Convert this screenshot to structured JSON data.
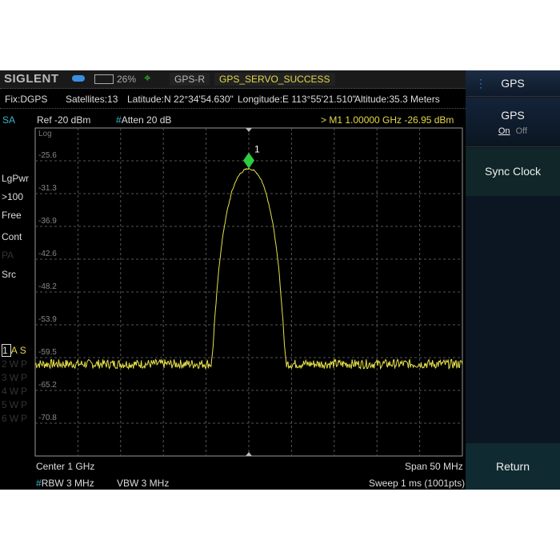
{
  "header": {
    "brand": "SIGLENT",
    "battery": "26%",
    "gps_mode": "GPS-R",
    "gps_status": "GPS_SERVO_SUCCESS"
  },
  "gps_info": {
    "fix": "Fix:DGPS",
    "satellites": "Satellites:13",
    "latitude": "Latitude:N 22°34'54.630\"",
    "longitude": "Longitude:E 113°55'21.510\"",
    "altitude": "Altitude:35.3 Meters"
  },
  "status": {
    "mode": "SA",
    "ref": "Ref  -20 dBm",
    "atten_mark": "#",
    "atten": "Atten  20 dB",
    "marker": ">  M1   1.00000 GHz   -26.95 dBm"
  },
  "left_panel": {
    "items": [
      "LgPwr",
      ">100",
      "Free",
      "Cont",
      "PA",
      "Src"
    ],
    "traces": [
      [
        "1",
        "A",
        "S"
      ],
      [
        "2",
        "W",
        "P"
      ],
      [
        "3",
        "W",
        "P"
      ],
      [
        "4",
        "W",
        "P"
      ],
      [
        "5",
        "W",
        "P"
      ],
      [
        "6",
        "W",
        "P"
      ]
    ]
  },
  "bottom": {
    "center": "Center  1 GHz",
    "span": "Span  50 MHz",
    "rbw_mark": "#",
    "rbw": "RBW  3 MHz",
    "vbw": "VBW  3 MHz",
    "sweep": "Sweep  1 ms (1001pts)"
  },
  "menu": {
    "title": "GPS",
    "gps_label": "GPS",
    "on": "On",
    "off": "Off",
    "sync": "Sync Clock",
    "ret": "Return"
  },
  "chart_data": {
    "type": "line",
    "scale": "Log",
    "y_ticks": [
      "-25.6",
      "-31.3",
      "-36.9",
      "-42.6",
      "-48.2",
      "-53.9",
      "-59.5",
      "-65.2",
      "-70.8"
    ],
    "ylim": [
      -76.3,
      -20
    ],
    "xlim_mhz": [
      975,
      1025
    ],
    "grid": true,
    "color": "#e6e04a",
    "noise_floor_dbm": -60.5,
    "signal_points": {
      "offset_mhz": [
        -4.4,
        -4.2,
        -4,
        -3.5,
        -3,
        -2.5,
        -2,
        -1.5,
        -1,
        -0.5,
        0,
        0.5,
        1,
        1.5,
        2,
        2.5,
        3,
        3.5,
        4,
        4.2,
        4.4
      ],
      "dbm": [
        -60.5,
        -58,
        -53,
        -44,
        -38,
        -34,
        -31,
        -29,
        -27.8,
        -27.2,
        -26.95,
        -27.2,
        -27.8,
        -29,
        -31,
        -34,
        -38,
        -44,
        -53,
        -58,
        -60.5
      ]
    },
    "marker": {
      "label": "1",
      "freq_ghz": 1.0,
      "dbm": -26.95,
      "color": "#2ecc40"
    }
  }
}
